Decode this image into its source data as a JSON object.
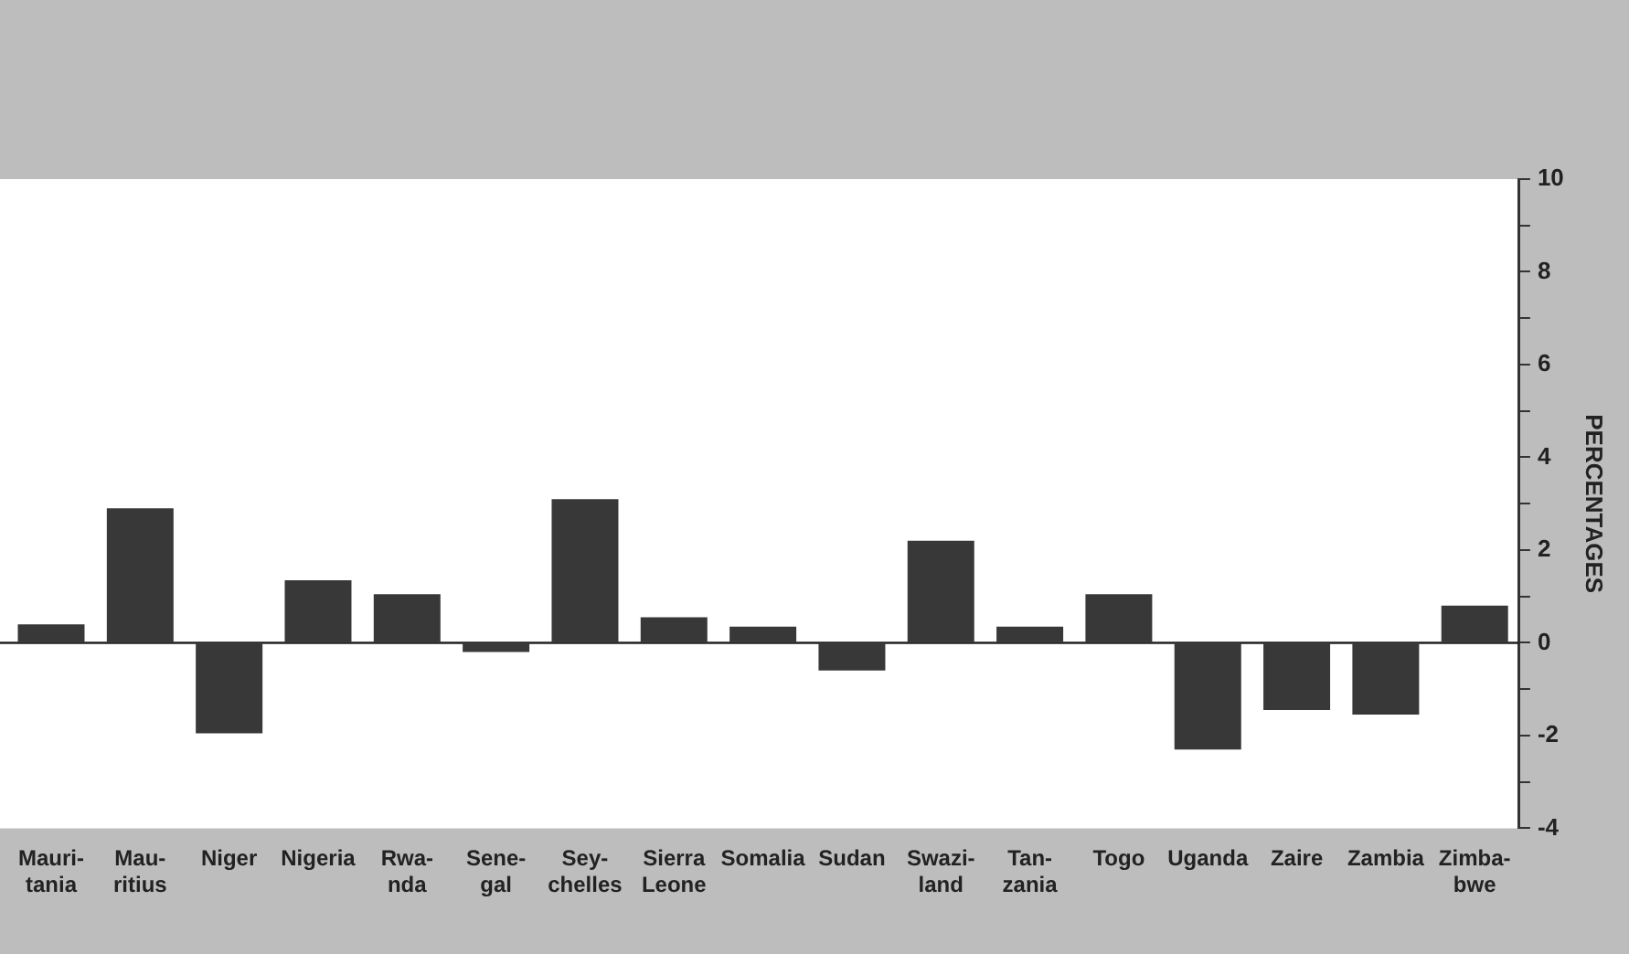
{
  "chart_data": {
    "type": "bar",
    "ylabel": "PERCENTAGES",
    "categories": [
      "Mauri-\ntania",
      "Mau-\nritius",
      "Niger",
      "Nigeria",
      "Rwa-\nnda",
      "Sene-\ngal",
      "Sey-\nchelles",
      "Sierra\nLeone",
      "Somalia",
      "Sudan",
      "Swazi-\nland",
      "Tan-\nzania",
      "Togo",
      "Uganda",
      "Zaire",
      "Zambia",
      "Zimba-\nbwe"
    ],
    "values": [
      0.4,
      2.9,
      -1.95,
      1.35,
      1.05,
      -0.2,
      3.1,
      0.55,
      0.35,
      -0.6,
      2.2,
      0.35,
      1.05,
      -2.3,
      -1.45,
      -1.55,
      0.8
    ],
    "color": "#383838",
    "ylim": [
      -4,
      10
    ],
    "yticks": [
      -4,
      {
        "value": -3,
        "label": null
      },
      -2,
      {
        "value": -1,
        "label": null
      },
      0,
      {
        "value": 1,
        "label": null
      },
      2,
      {
        "value": 3,
        "label": null
      },
      4,
      {
        "value": 5,
        "label": null
      },
      6,
      {
        "value": 7,
        "label": null
      },
      8,
      {
        "value": 9,
        "label": null
      },
      10
    ],
    "ref_lines": [
      {
        "axis": "y",
        "value": 0,
        "color": "#222222"
      }
    ],
    "grid": false,
    "legend": false
  }
}
